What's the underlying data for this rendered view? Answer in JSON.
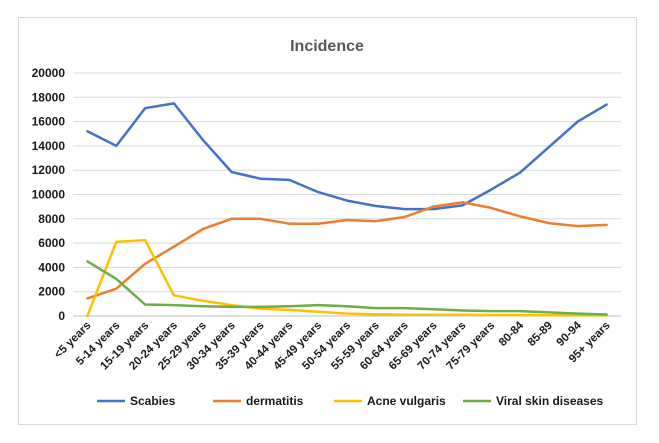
{
  "chart_data": {
    "type": "line",
    "title": "Incidence",
    "xlabel": "",
    "ylabel": "",
    "ylim": [
      0,
      20000
    ],
    "yticks": [
      0,
      2000,
      4000,
      6000,
      8000,
      10000,
      12000,
      14000,
      16000,
      18000,
      20000
    ],
    "grid": true,
    "legend_position": "bottom",
    "categories": [
      "<5 years",
      "5-14 years",
      "15-19 years",
      "20-24 years",
      "25-29 years",
      "30-34 years",
      "35-39 years",
      "40-44 years",
      "45-49 years",
      "50-54 years",
      "55-59 years",
      "60-64 years",
      "65-69 years",
      "70-74 years",
      "75-79 years",
      "80-84",
      "85-89",
      "90-94",
      "95+ years"
    ],
    "series": [
      {
        "name": "Scabies",
        "color": "#4472c4",
        "values": [
          15200,
          14000,
          17100,
          17500,
          14500,
          11850,
          11300,
          11200,
          10200,
          9500,
          9050,
          8800,
          8800,
          9100,
          10400,
          11800,
          13900,
          16000,
          17400
        ]
      },
      {
        "name": "dermatitis",
        "color": "#ed7d31",
        "values": [
          1450,
          2250,
          4300,
          5700,
          7150,
          8000,
          8000,
          7600,
          7600,
          7900,
          7800,
          8150,
          9000,
          9350,
          8900,
          8200,
          7650,
          7400,
          7500
        ]
      },
      {
        "name": "Acne vulgaris",
        "color": "#ffc000",
        "values": [
          0,
          6100,
          6250,
          1700,
          1250,
          900,
          600,
          500,
          350,
          200,
          150,
          100,
          100,
          100,
          80,
          80,
          60,
          50,
          50
        ]
      },
      {
        "name": "Viral skin diseases",
        "color": "#70ad47",
        "values": [
          4500,
          3050,
          950,
          900,
          800,
          750,
          750,
          800,
          900,
          800,
          650,
          650,
          550,
          450,
          400,
          400,
          300,
          200,
          120
        ]
      }
    ]
  }
}
